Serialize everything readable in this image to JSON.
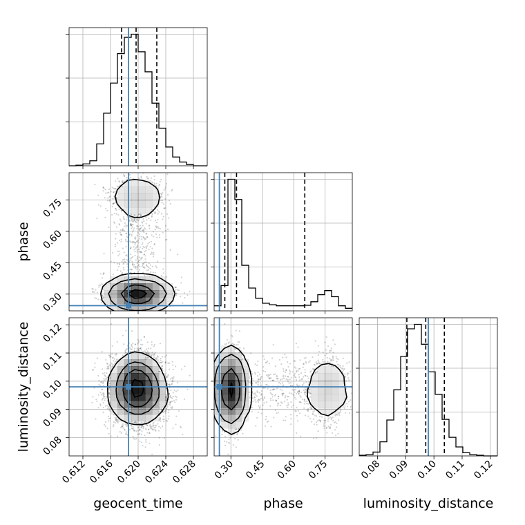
{
  "chart_data": {
    "type": "corner",
    "parameters": [
      "geocent_time",
      "phase",
      "luminosity_distance"
    ],
    "axis_labels": {
      "geocent_time": "geocent_time",
      "phase": "phase",
      "luminosity_distance": "luminosity_distance"
    },
    "ranges": {
      "geocent_time": [
        0.61,
        0.63
      ],
      "phase": [
        0.22,
        0.88
      ],
      "luminosity_distance": [
        0.0735,
        0.1225
      ]
    },
    "ticks": {
      "geocent_time": [
        0.612,
        0.616,
        0.62,
        0.624,
        0.628
      ],
      "phase": [
        0.3,
        0.45,
        0.6,
        0.75
      ],
      "luminosity_distance": [
        0.08,
        0.09,
        0.1,
        0.11,
        0.12
      ]
    },
    "tick_labels": {
      "geocent_time": [
        "0.612",
        "0.616",
        "0.620",
        "0.624",
        "0.628"
      ],
      "phase": [
        "0.30",
        "0.45",
        "0.60",
        "0.75"
      ],
      "luminosity_distance": [
        "0.08",
        "0.09",
        "0.10",
        "0.11",
        "0.12"
      ]
    },
    "quantiles": {
      "geocent_time": [
        0.6176,
        0.6197,
        0.6227
      ],
      "phase": [
        0.271,
        0.327,
        0.653
      ],
      "luminosity_distance": [
        0.0904,
        0.0971,
        0.1037
      ]
    },
    "truths": {
      "geocent_time": 0.6186,
      "phase": 0.245,
      "luminosity_distance": 0.098
    },
    "histograms": {
      "geocent_time": {
        "edges": [
          0.61,
          0.611,
          0.612,
          0.613,
          0.614,
          0.615,
          0.616,
          0.617,
          0.618,
          0.619,
          0.62,
          0.621,
          0.622,
          0.623,
          0.624,
          0.625,
          0.626,
          0.627,
          0.628,
          0.629,
          0.63
        ],
        "counts": [
          0,
          1,
          3,
          8,
          35,
          84,
          132,
          179,
          205,
          210,
          182,
          150,
          100,
          60,
          30,
          14,
          6,
          2,
          0,
          0
        ]
      },
      "phase": {
        "edges": [
          0.22,
          0.253,
          0.286,
          0.319,
          0.352,
          0.385,
          0.418,
          0.451,
          0.484,
          0.517,
          0.55,
          0.583,
          0.616,
          0.649,
          0.682,
          0.715,
          0.748,
          0.781,
          0.814,
          0.847,
          0.88
        ],
        "counts": [
          10,
          50,
          260,
          220,
          90,
          45,
          25,
          15,
          12,
          10,
          10,
          10,
          10,
          11,
          18,
          32,
          40,
          28,
          10,
          5
        ]
      },
      "luminosity_distance": {
        "edges": [
          0.0735,
          0.07595,
          0.0784,
          0.08085,
          0.0833,
          0.08575,
          0.0882,
          0.09065,
          0.0931,
          0.09555,
          0.098,
          0.10045,
          0.1029,
          0.10535,
          0.1078,
          0.11025,
          0.1127,
          0.11515,
          0.1176,
          0.12005,
          0.1225
        ],
        "counts": [
          1,
          2,
          6,
          22,
          56,
          103,
          155,
          198,
          205,
          174,
          131,
          96,
          57,
          29,
          14,
          5,
          2,
          1,
          0,
          0
        ]
      }
    },
    "contour_sigma_levels": [
      0.5,
      1.0,
      1.5,
      2.0
    ],
    "colors": {
      "truth": "#4682b4",
      "line": "#000000",
      "grid": "#b0b0b0",
      "density": "#000000"
    }
  }
}
